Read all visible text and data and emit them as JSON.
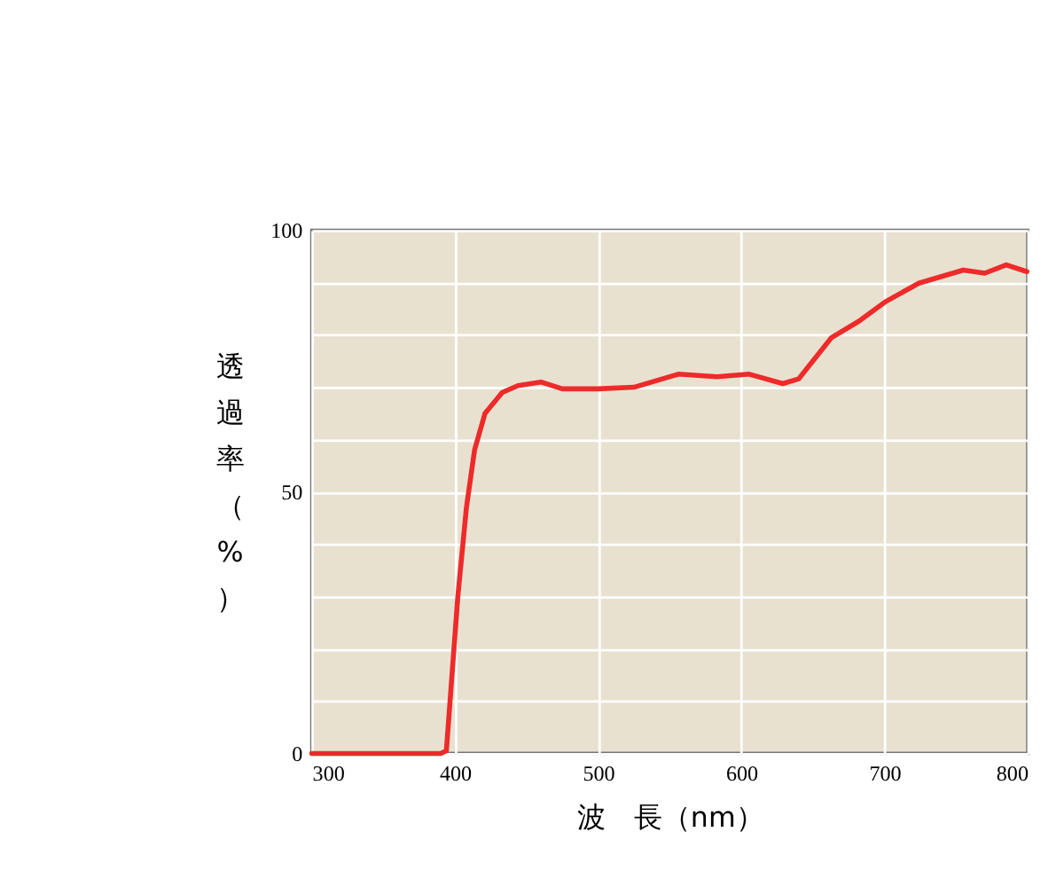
{
  "chart_data": {
    "type": "line",
    "xlabel": "波　長（nm）",
    "ylabel": "透過率（%）",
    "x": [
      300,
      350,
      390,
      394,
      402,
      408,
      413.7,
      421,
      433,
      444,
      460,
      475,
      500,
      525,
      556,
      583,
      605.5,
      629,
      640,
      663,
      682,
      701,
      724,
      755,
      770,
      785,
      799.5
    ],
    "series": [
      {
        "color": "#ee2a2a",
        "values": [
          0,
          0,
          0,
          0.5,
          30,
          47,
          58,
          65,
          69,
          70.3,
          71,
          69.7,
          69.7,
          70,
          72.5,
          72,
          72.5,
          70.7,
          71.6,
          79.5,
          82.6,
          86.4,
          89.9,
          92.4,
          91.8,
          93.4,
          92.1
        ]
      }
    ],
    "xlim": [
      300,
      800
    ],
    "xticks": [
      300,
      400,
      500,
      600,
      700,
      800
    ],
    "ylim": [
      0,
      100
    ],
    "yticks": [
      0,
      {
        "value": 10,
        "label": null
      },
      {
        "value": 20,
        "label": null
      },
      {
        "value": 30,
        "label": null
      },
      {
        "value": 40,
        "label": null
      },
      50,
      {
        "value": 60,
        "label": null
      },
      {
        "value": 70,
        "label": null
      },
      {
        "value": 80,
        "label": null
      },
      {
        "value": 90,
        "label": null
      },
      100
    ],
    "grid": true,
    "marker": "none",
    "line_style": "solid"
  }
}
